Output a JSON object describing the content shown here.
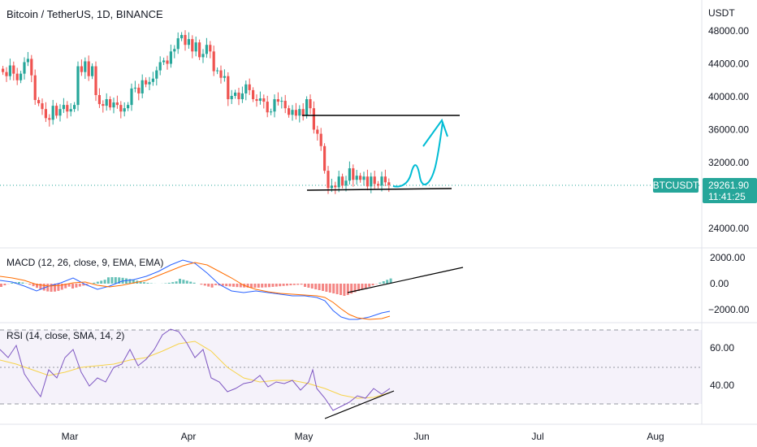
{
  "chart_data": {
    "type": "candlestick",
    "title": "Bitcoin / TetherUS, 1D, BINANCE",
    "currency": "USDT",
    "price_axis": {
      "ticks": [
        24000,
        28000,
        32000,
        36000,
        40000,
        44000,
        48000
      ],
      "labels": [
        "24000.00",
        "28000.00",
        "32000.00",
        "36000.00",
        "40000.00",
        "44000.00",
        "48000.00"
      ]
    },
    "time_axis": {
      "labels": [
        "Mar",
        "Apr",
        "May",
        "Jun",
        "Jul",
        "Aug"
      ]
    },
    "last_price": {
      "symbol": "BTCUSDT",
      "value": "29261.90",
      "countdown": "11:41:25",
      "numeric": 29261.9
    },
    "candles": [
      [
        43400,
        43000
      ],
      [
        43000,
        42500
      ],
      [
        42500,
        43800
      ],
      [
        43800,
        42800
      ],
      [
        42800,
        42000
      ],
      [
        42000,
        42800
      ],
      [
        42800,
        44200
      ],
      [
        44200,
        44600
      ],
      [
        44600,
        42600
      ],
      [
        42600,
        39600
      ],
      [
        39600,
        39200
      ],
      [
        39200,
        38500
      ],
      [
        38500,
        37400
      ],
      [
        37400,
        37200
      ],
      [
        37200,
        38900
      ],
      [
        38900,
        37700
      ],
      [
        37700,
        38500
      ],
      [
        38500,
        39000
      ],
      [
        39000,
        38200
      ],
      [
        38200,
        38500
      ],
      [
        38500,
        39000
      ],
      [
        39000,
        43700
      ],
      [
        43700,
        43000
      ],
      [
        43000,
        44300
      ],
      [
        44300,
        42500
      ],
      [
        42500,
        43700
      ],
      [
        43700,
        40200
      ],
      [
        40200,
        39100
      ],
      [
        39100,
        38900
      ],
      [
        38900,
        39700
      ],
      [
        39700,
        38700
      ],
      [
        38700,
        39300
      ],
      [
        39300,
        39000
      ],
      [
        39000,
        38200
      ],
      [
        38200,
        38600
      ],
      [
        38600,
        39000
      ],
      [
        39000,
        41000
      ],
      [
        41000,
        41100
      ],
      [
        41100,
        40400
      ],
      [
        40400,
        42000
      ],
      [
        42000,
        41500
      ],
      [
        41500,
        41800
      ],
      [
        41800,
        42200
      ],
      [
        42200,
        43200
      ],
      [
        43200,
        44200
      ],
      [
        44200,
        44400
      ],
      [
        44400,
        44000
      ],
      [
        44000,
        45500
      ],
      [
        45500,
        45800
      ],
      [
        45800,
        47100
      ],
      [
        47100,
        47500
      ],
      [
        47500,
        46300
      ],
      [
        46300,
        47000
      ],
      [
        47000,
        45500
      ],
      [
        45500,
        46600
      ],
      [
        46600,
        44800
      ],
      [
        44800,
        45200
      ],
      [
        45200,
        46300
      ],
      [
        46300,
        45500
      ],
      [
        45500,
        43100
      ],
      [
        43100,
        43200
      ],
      [
        43200,
        42300
      ],
      [
        42300,
        42500
      ],
      [
        42500,
        39700
      ],
      [
        39700,
        40100
      ],
      [
        40100,
        40500
      ],
      [
        40500,
        39700
      ],
      [
        39700,
        40400
      ],
      [
        40400,
        41500
      ],
      [
        41500,
        40800
      ],
      [
        40800,
        39700
      ],
      [
        39700,
        39500
      ],
      [
        39500,
        39800
      ],
      [
        39800,
        39400
      ],
      [
        39400,
        38100
      ],
      [
        38100,
        38200
      ],
      [
        38200,
        39700
      ],
      [
        39700,
        39400
      ],
      [
        39400,
        39500
      ],
      [
        39500,
        38600
      ],
      [
        38600,
        37800
      ],
      [
        37800,
        38400
      ],
      [
        38400,
        37700
      ],
      [
        37700,
        38500
      ],
      [
        38500,
        37700
      ],
      [
        37700,
        39700
      ],
      [
        39700,
        38600
      ],
      [
        38600,
        36000
      ],
      [
        36000,
        35500
      ],
      [
        35500,
        34000
      ],
      [
        34000,
        31000
      ],
      [
        31000,
        28900
      ],
      [
        28900,
        29200
      ],
      [
        29200,
        29000
      ],
      [
        29000,
        30300
      ],
      [
        30300,
        29200
      ],
      [
        29200,
        29800
      ],
      [
        29800,
        31300
      ],
      [
        31300,
        29900
      ],
      [
        29900,
        30400
      ],
      [
        30400,
        29900
      ],
      [
        29900,
        30300
      ],
      [
        30300,
        29100
      ],
      [
        29100,
        30300
      ],
      [
        30300,
        29400
      ],
      [
        29400,
        29200
      ],
      [
        29200,
        30300
      ],
      [
        30300,
        29600
      ],
      [
        29600,
        29262
      ]
    ],
    "indicators": [
      {
        "name": "MACD",
        "label": "MACD (12, 26, close, 9, EMA, EMA)",
        "axis_labels": [
          "2000.00",
          "0.00",
          "−2000.00"
        ],
        "axis_values": [
          2000,
          0,
          -2000
        ]
      },
      {
        "name": "RSI",
        "label": "RSI (14, close, SMA, 14, 2)",
        "axis_labels": [
          "60.00",
          "40.00"
        ],
        "axis_values": [
          60,
          40
        ],
        "bands": [
          70,
          50,
          30
        ]
      }
    ]
  },
  "colors": {
    "up": "#26a69a",
    "down": "#ef5350",
    "text": "#131722",
    "axis_text": "#131722",
    "grid": "#e0e3eb",
    "drawing_black": "#000000",
    "drawing_cyan": "#00bcd4",
    "macd_line": "#2962ff",
    "signal_line": "#ff6d00",
    "hist_up": "#26a69a",
    "hist_down": "#ef5350",
    "rsi_line": "#7e57c2",
    "rsi_ma": "#f7d34a",
    "rsi_band": "#7e57c2",
    "price_label_bg": "#26a69a"
  }
}
